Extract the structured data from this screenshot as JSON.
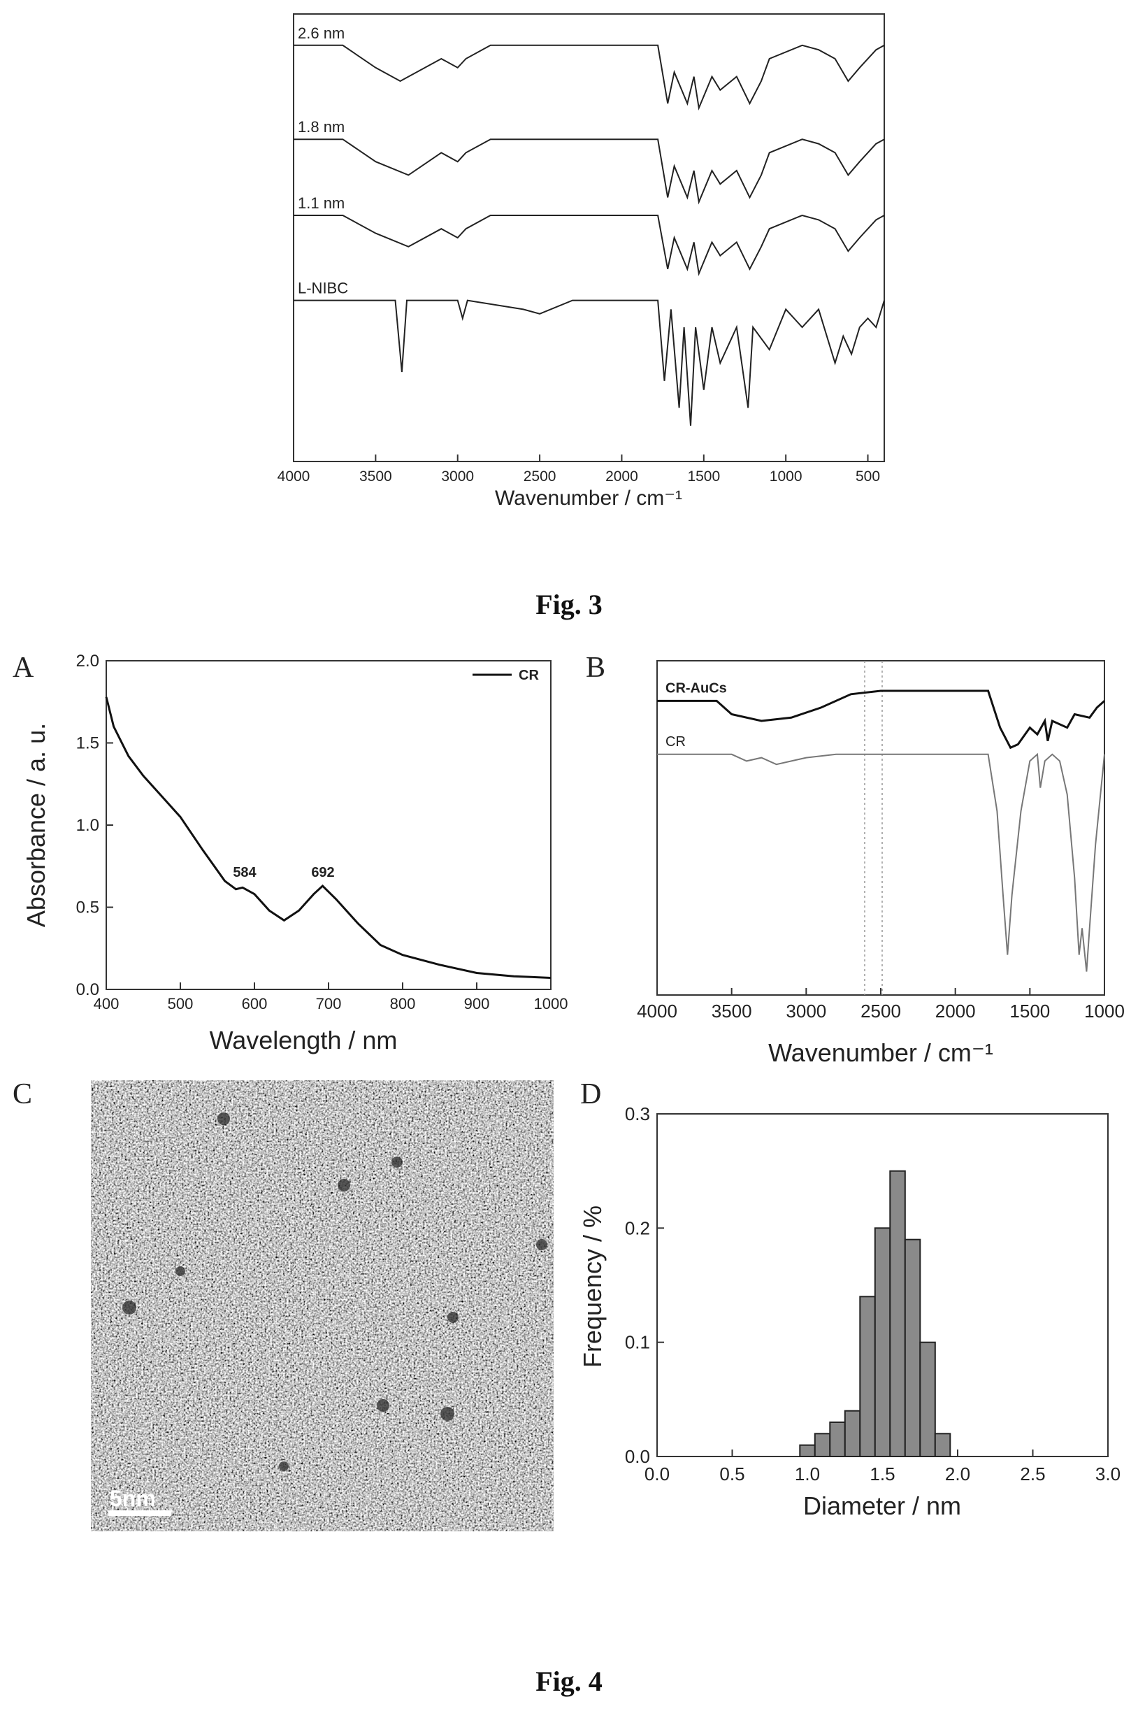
{
  "captions": {
    "fig3": "Fig. 3",
    "fig4": "Fig. 4"
  },
  "panels": {
    "A": "A",
    "B": "B",
    "C": "C",
    "D": "D"
  },
  "chart_data": [
    {
      "id": "fig3",
      "type": "line",
      "xlabel": "Wavenumber / cm⁻¹",
      "xlim": [
        4000,
        400
      ],
      "xticks": [
        4000,
        3500,
        3000,
        2500,
        2000,
        1500,
        1000,
        500
      ],
      "series": [
        {
          "name": "2.6 nm",
          "points": [
            [
              4000,
              0.93
            ],
            [
              3700,
              0.93
            ],
            [
              3500,
              0.88
            ],
            [
              3350,
              0.85
            ],
            [
              3100,
              0.9
            ],
            [
              3000,
              0.88
            ],
            [
              2950,
              0.9
            ],
            [
              2800,
              0.93
            ],
            [
              1780,
              0.93
            ],
            [
              1720,
              0.8
            ],
            [
              1680,
              0.87
            ],
            [
              1600,
              0.8
            ],
            [
              1560,
              0.86
            ],
            [
              1530,
              0.79
            ],
            [
              1450,
              0.86
            ],
            [
              1400,
              0.83
            ],
            [
              1300,
              0.86
            ],
            [
              1220,
              0.8
            ],
            [
              1150,
              0.85
            ],
            [
              1100,
              0.9
            ],
            [
              900,
              0.93
            ],
            [
              800,
              0.92
            ],
            [
              700,
              0.9
            ],
            [
              620,
              0.85
            ],
            [
              550,
              0.88
            ],
            [
              450,
              0.92
            ],
            [
              400,
              0.93
            ]
          ]
        },
        {
          "name": "1.8 nm",
          "points": [
            [
              4000,
              0.72
            ],
            [
              3700,
              0.72
            ],
            [
              3500,
              0.67
            ],
            [
              3300,
              0.64
            ],
            [
              3100,
              0.69
            ],
            [
              3000,
              0.67
            ],
            [
              2950,
              0.69
            ],
            [
              2800,
              0.72
            ],
            [
              1780,
              0.72
            ],
            [
              1720,
              0.59
            ],
            [
              1680,
              0.66
            ],
            [
              1600,
              0.59
            ],
            [
              1560,
              0.65
            ],
            [
              1530,
              0.58
            ],
            [
              1450,
              0.65
            ],
            [
              1400,
              0.62
            ],
            [
              1300,
              0.65
            ],
            [
              1220,
              0.59
            ],
            [
              1150,
              0.64
            ],
            [
              1100,
              0.69
            ],
            [
              900,
              0.72
            ],
            [
              800,
              0.71
            ],
            [
              700,
              0.69
            ],
            [
              620,
              0.64
            ],
            [
              550,
              0.67
            ],
            [
              450,
              0.71
            ],
            [
              400,
              0.72
            ]
          ]
        },
        {
          "name": "1.1 nm",
          "points": [
            [
              4000,
              0.55
            ],
            [
              3700,
              0.55
            ],
            [
              3500,
              0.51
            ],
            [
              3300,
              0.48
            ],
            [
              3100,
              0.52
            ],
            [
              3000,
              0.5
            ],
            [
              2950,
              0.52
            ],
            [
              2800,
              0.55
            ],
            [
              1780,
              0.55
            ],
            [
              1720,
              0.43
            ],
            [
              1680,
              0.5
            ],
            [
              1600,
              0.43
            ],
            [
              1560,
              0.49
            ],
            [
              1530,
              0.42
            ],
            [
              1450,
              0.49
            ],
            [
              1400,
              0.46
            ],
            [
              1300,
              0.49
            ],
            [
              1220,
              0.43
            ],
            [
              1150,
              0.48
            ],
            [
              1100,
              0.52
            ],
            [
              900,
              0.55
            ],
            [
              800,
              0.54
            ],
            [
              700,
              0.52
            ],
            [
              620,
              0.47
            ],
            [
              550,
              0.5
            ],
            [
              450,
              0.54
            ],
            [
              400,
              0.55
            ]
          ]
        },
        {
          "name": "L-NIBC",
          "points": [
            [
              4000,
              0.36
            ],
            [
              3380,
              0.36
            ],
            [
              3340,
              0.2
            ],
            [
              3310,
              0.36
            ],
            [
              3000,
              0.36
            ],
            [
              2970,
              0.32
            ],
            [
              2940,
              0.36
            ],
            [
              2600,
              0.34
            ],
            [
              2500,
              0.33
            ],
            [
              2300,
              0.36
            ],
            [
              1780,
              0.36
            ],
            [
              1740,
              0.18
            ],
            [
              1700,
              0.34
            ],
            [
              1650,
              0.12
            ],
            [
              1620,
              0.3
            ],
            [
              1580,
              0.08
            ],
            [
              1550,
              0.3
            ],
            [
              1500,
              0.16
            ],
            [
              1450,
              0.3
            ],
            [
              1400,
              0.22
            ],
            [
              1300,
              0.3
            ],
            [
              1230,
              0.12
            ],
            [
              1200,
              0.3
            ],
            [
              1100,
              0.25
            ],
            [
              1000,
              0.34
            ],
            [
              900,
              0.3
            ],
            [
              800,
              0.34
            ],
            [
              700,
              0.22
            ],
            [
              650,
              0.28
            ],
            [
              600,
              0.24
            ],
            [
              550,
              0.3
            ],
            [
              500,
              0.32
            ],
            [
              450,
              0.3
            ],
            [
              400,
              0.36
            ]
          ]
        }
      ]
    },
    {
      "id": "fig4A",
      "type": "line",
      "xlabel": "Wavelength / nm",
      "ylabel": "Absorbance / a. u.",
      "xlim": [
        400,
        1000
      ],
      "ylim": [
        0.0,
        2.0
      ],
      "xticks": [
        400,
        500,
        600,
        700,
        800,
        900,
        1000
      ],
      "yticks": [
        "0.0",
        "0.5",
        "1.0",
        "1.5",
        "2.0"
      ],
      "legend": "top-right",
      "annotations": [
        "584",
        "692"
      ],
      "series": [
        {
          "name": "CR",
          "points": [
            [
              400,
              1.78
            ],
            [
              410,
              1.6
            ],
            [
              430,
              1.42
            ],
            [
              450,
              1.3
            ],
            [
              470,
              1.2
            ],
            [
              500,
              1.05
            ],
            [
              530,
              0.85
            ],
            [
              560,
              0.66
            ],
            [
              575,
              0.61
            ],
            [
              584,
              0.62
            ],
            [
              600,
              0.58
            ],
            [
              620,
              0.48
            ],
            [
              640,
              0.42
            ],
            [
              660,
              0.48
            ],
            [
              680,
              0.58
            ],
            [
              692,
              0.63
            ],
            [
              710,
              0.55
            ],
            [
              740,
              0.4
            ],
            [
              770,
              0.27
            ],
            [
              800,
              0.21
            ],
            [
              850,
              0.15
            ],
            [
              900,
              0.1
            ],
            [
              950,
              0.08
            ],
            [
              1000,
              0.07
            ]
          ]
        }
      ]
    },
    {
      "id": "fig4B",
      "type": "line",
      "xlabel": "Wavenumber / cm⁻¹",
      "xlim": [
        4000,
        1000
      ],
      "xticks": [
        4000,
        3500,
        3000,
        2500,
        2000,
        1500,
        1000
      ],
      "series": [
        {
          "name": "CR-AuCs",
          "points": [
            [
              4000,
              0.88
            ],
            [
              3600,
              0.88
            ],
            [
              3500,
              0.84
            ],
            [
              3300,
              0.82
            ],
            [
              3100,
              0.83
            ],
            [
              2900,
              0.86
            ],
            [
              2700,
              0.9
            ],
            [
              2500,
              0.91
            ],
            [
              1780,
              0.91
            ],
            [
              1700,
              0.8
            ],
            [
              1630,
              0.74
            ],
            [
              1580,
              0.75
            ],
            [
              1500,
              0.8
            ],
            [
              1450,
              0.78
            ],
            [
              1400,
              0.82
            ],
            [
              1380,
              0.76
            ],
            [
              1350,
              0.82
            ],
            [
              1250,
              0.8
            ],
            [
              1200,
              0.84
            ],
            [
              1100,
              0.83
            ],
            [
              1050,
              0.86
            ],
            [
              1000,
              0.88
            ]
          ]
        },
        {
          "name": "CR",
          "points": [
            [
              4000,
              0.72
            ],
            [
              3500,
              0.72
            ],
            [
              3400,
              0.7
            ],
            [
              3300,
              0.71
            ],
            [
              3200,
              0.69
            ],
            [
              3000,
              0.71
            ],
            [
              2800,
              0.72
            ],
            [
              1780,
              0.72
            ],
            [
              1720,
              0.55
            ],
            [
              1680,
              0.3
            ],
            [
              1650,
              0.12
            ],
            [
              1620,
              0.3
            ],
            [
              1560,
              0.55
            ],
            [
              1500,
              0.7
            ],
            [
              1450,
              0.72
            ],
            [
              1430,
              0.62
            ],
            [
              1400,
              0.7
            ],
            [
              1350,
              0.72
            ],
            [
              1300,
              0.7
            ],
            [
              1250,
              0.6
            ],
            [
              1200,
              0.35
            ],
            [
              1170,
              0.12
            ],
            [
              1150,
              0.2
            ],
            [
              1120,
              0.07
            ],
            [
              1100,
              0.2
            ],
            [
              1060,
              0.45
            ],
            [
              1000,
              0.72
            ]
          ]
        }
      ]
    },
    {
      "id": "fig4C",
      "type": "image",
      "scale_label": "5nm"
    },
    {
      "id": "fig4D",
      "type": "bar",
      "xlabel": "Diameter / nm",
      "ylabel": "Frequency / %",
      "xlim": [
        0.0,
        3.0
      ],
      "ylim": [
        0.0,
        0.3
      ],
      "xticks": [
        "0.0",
        "0.5",
        "1.0",
        "1.5",
        "2.0",
        "2.5",
        "3.0"
      ],
      "yticks": [
        "0.0",
        "0.1",
        "0.2",
        "0.3"
      ],
      "bin_width": 0.1,
      "bins": [
        {
          "x": 1.0,
          "value": 0.01
        },
        {
          "x": 1.1,
          "value": 0.02
        },
        {
          "x": 1.2,
          "value": 0.03
        },
        {
          "x": 1.3,
          "value": 0.04
        },
        {
          "x": 1.4,
          "value": 0.14
        },
        {
          "x": 1.5,
          "value": 0.2
        },
        {
          "x": 1.6,
          "value": 0.25
        },
        {
          "x": 1.7,
          "value": 0.19
        },
        {
          "x": 1.8,
          "value": 0.1
        },
        {
          "x": 1.9,
          "value": 0.02
        }
      ]
    }
  ]
}
